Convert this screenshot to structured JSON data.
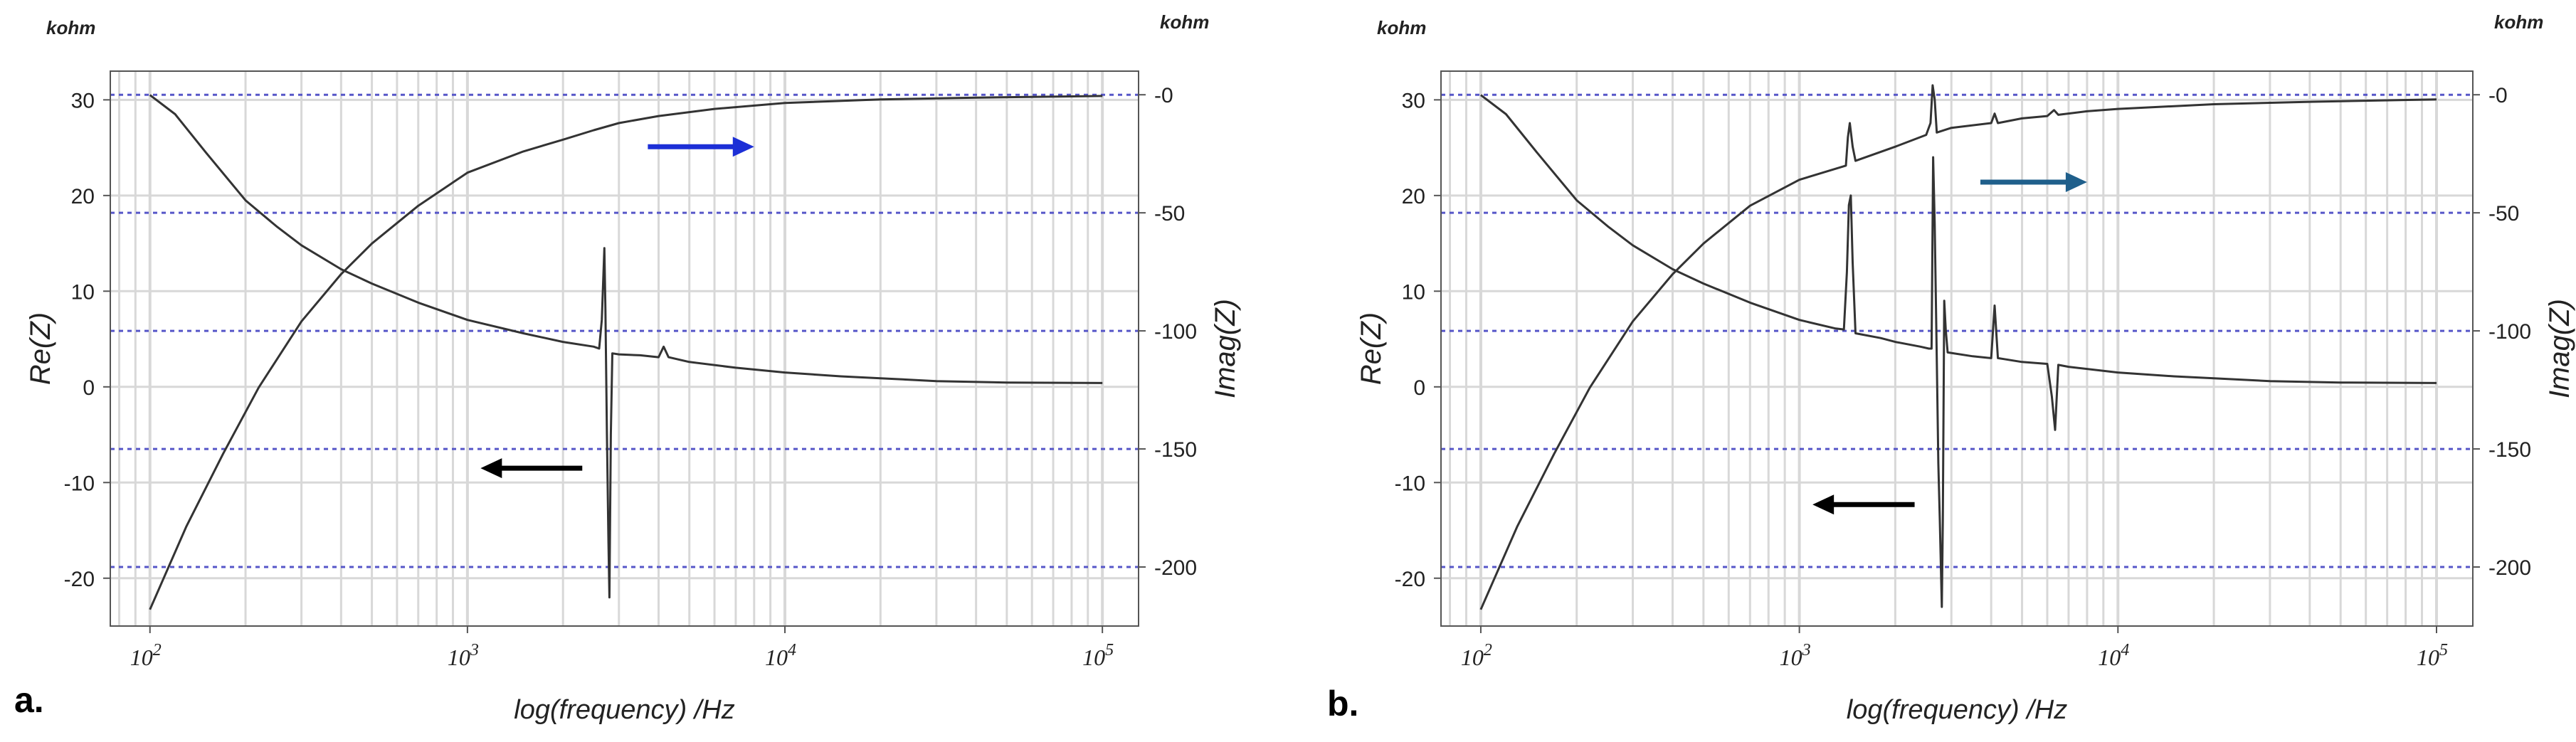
{
  "chart_data": [
    {
      "type": "line",
      "panel_label": "a.",
      "xlabel": "log(frequency) /Hz",
      "ylabel_left": "Re(Z)",
      "ylabel_right": "Imag(Z)",
      "unit_left": "kohm",
      "unit_right": "kohm",
      "x_scale": "log",
      "x_ticks": [
        {
          "value": 100,
          "base": "10",
          "exp": "2"
        },
        {
          "value": 1000,
          "base": "10",
          "exp": "3"
        },
        {
          "value": 10000,
          "base": "10",
          "exp": "4"
        },
        {
          "value": 100000,
          "base": "10",
          "exp": "5"
        }
      ],
      "xlim": [
        75,
        130000
      ],
      "ylim_left": [
        -25,
        33
      ],
      "y_ticks_left": [
        "30",
        "20",
        "10",
        "0",
        "-10",
        "-20"
      ],
      "y_tick_values_left": [
        30,
        20,
        10,
        0,
        -10,
        -20
      ],
      "ylim_right": [
        -225,
        10
      ],
      "y_ticks_right": [
        "-0",
        "-50",
        "-100",
        "-150",
        "-200"
      ],
      "y_tick_values_right": [
        0,
        -50,
        -100,
        -150,
        -200
      ],
      "grid": true,
      "colors": {
        "curve": "#333333",
        "grid_vertical": "#d8d8d8",
        "grid_horizontal": "#5656c8",
        "arrow_right": "#1c2fd6",
        "arrow_left": "#000000"
      },
      "series": [
        {
          "axis": "left",
          "points": [
            [
              100,
              30.5
            ],
            [
              120,
              28.5
            ],
            [
              150,
              24.5
            ],
            [
              200,
              19.5
            ],
            [
              250,
              16.8
            ],
            [
              300,
              14.8
            ],
            [
              400,
              12.3
            ],
            [
              500,
              10.8
            ],
            [
              700,
              8.8
            ],
            [
              1000,
              7.0
            ],
            [
              1500,
              5.6
            ],
            [
              2000,
              4.7
            ],
            [
              2500,
              4.2
            ],
            [
              2600,
              4.0
            ],
            [
              2650,
              7.0
            ],
            [
              2700,
              14.5
            ],
            [
              2720,
              8.0
            ],
            [
              2750,
              -5.0
            ],
            [
              2780,
              -16.0
            ],
            [
              2800,
              -22.0
            ],
            [
              2830,
              -5.0
            ],
            [
              2860,
              3.5
            ],
            [
              3000,
              3.4
            ],
            [
              3500,
              3.3
            ],
            [
              4000,
              3.1
            ],
            [
              4150,
              4.2
            ],
            [
              4300,
              3.1
            ],
            [
              5000,
              2.6
            ],
            [
              7000,
              2.0
            ],
            [
              10000,
              1.5
            ],
            [
              15000,
              1.1
            ],
            [
              20000,
              0.9
            ],
            [
              30000,
              0.6
            ],
            [
              50000,
              0.45
            ],
            [
              100000,
              0.4
            ]
          ]
        },
        {
          "axis": "right",
          "points": [
            [
              100,
              -218
            ],
            [
              130,
              -183
            ],
            [
              170,
              -152
            ],
            [
              220,
              -124
            ],
            [
              300,
              -96
            ],
            [
              400,
              -76
            ],
            [
              500,
              -63
            ],
            [
              700,
              -47
            ],
            [
              1000,
              -33
            ],
            [
              1500,
              -24
            ],
            [
              2000,
              -19
            ],
            [
              2500,
              -15
            ],
            [
              3000,
              -12
            ],
            [
              4000,
              -9
            ],
            [
              6000,
              -6
            ],
            [
              10000,
              -3.5
            ],
            [
              20000,
              -2
            ],
            [
              40000,
              -1.2
            ],
            [
              100000,
              -0.5
            ]
          ]
        }
      ],
      "annotations": [
        {
          "kind": "arrow",
          "direction": "right",
          "axis": "right",
          "color": "#1c2fd6",
          "from": [
            3700,
            -22
          ],
          "to": [
            8000,
            -22
          ]
        },
        {
          "kind": "arrow",
          "direction": "left",
          "axis": "left",
          "color": "#000000",
          "from": [
            2300,
            -8.5
          ],
          "to": [
            1100,
            -8.5
          ]
        }
      ]
    },
    {
      "type": "line",
      "panel_label": "b.",
      "xlabel": "log(frequency) /Hz",
      "ylabel_left": "Re(Z)",
      "ylabel_right": "Imag(Z)",
      "unit_left": "kohm",
      "unit_right": "kohm",
      "x_scale": "log",
      "x_ticks": [
        {
          "value": 100,
          "base": "10",
          "exp": "2"
        },
        {
          "value": 1000,
          "base": "10",
          "exp": "3"
        },
        {
          "value": 10000,
          "base": "10",
          "exp": "4"
        },
        {
          "value": 100000,
          "base": "10",
          "exp": "5"
        }
      ],
      "xlim": [
        75,
        130000
      ],
      "ylim_left": [
        -25,
        33
      ],
      "y_ticks_left": [
        "30",
        "20",
        "10",
        "0",
        "-10",
        "-20"
      ],
      "y_tick_values_left": [
        30,
        20,
        10,
        0,
        -10,
        -20
      ],
      "ylim_right": [
        -225,
        10
      ],
      "y_ticks_right": [
        "-0",
        "-50",
        "-100",
        "-150",
        "-200"
      ],
      "y_tick_values_right": [
        0,
        -50,
        -100,
        -150,
        -200
      ],
      "grid": true,
      "colors": {
        "curve": "#333333",
        "grid_vertical": "#d8d8d8",
        "grid_horizontal": "#5656c8",
        "arrow_right": "#1f5f8b",
        "arrow_left": "#000000"
      },
      "series": [
        {
          "axis": "left",
          "points": [
            [
              100,
              30.5
            ],
            [
              120,
              28.5
            ],
            [
              150,
              24.5
            ],
            [
              200,
              19.5
            ],
            [
              250,
              16.8
            ],
            [
              300,
              14.8
            ],
            [
              400,
              12.3
            ],
            [
              500,
              10.8
            ],
            [
              700,
              8.8
            ],
            [
              1000,
              7.0
            ],
            [
              1300,
              6.1
            ],
            [
              1380,
              6.0
            ],
            [
              1410,
              12.0
            ],
            [
              1430,
              19.0
            ],
            [
              1450,
              20.0
            ],
            [
              1470,
              13.0
            ],
            [
              1500,
              5.6
            ],
            [
              1800,
              5.1
            ],
            [
              2000,
              4.7
            ],
            [
              2400,
              4.2
            ],
            [
              2550,
              4.0
            ],
            [
              2600,
              4.0
            ],
            [
              2630,
              24.0
            ],
            [
              2660,
              17.0
            ],
            [
              2700,
              3.0
            ],
            [
              2730,
              -8.0
            ],
            [
              2760,
              -14.0
            ],
            [
              2800,
              -23.0
            ],
            [
              2820,
              -14.0
            ],
            [
              2850,
              9.0
            ],
            [
              2880,
              6.0
            ],
            [
              2920,
              3.6
            ],
            [
              3500,
              3.2
            ],
            [
              4000,
              3.0
            ],
            [
              4100,
              8.5
            ],
            [
              4200,
              3.0
            ],
            [
              4400,
              2.9
            ],
            [
              5000,
              2.6
            ],
            [
              6000,
              2.4
            ],
            [
              6200,
              -1.0
            ],
            [
              6350,
              -4.5
            ],
            [
              6500,
              2.3
            ],
            [
              7000,
              2.1
            ],
            [
              10000,
              1.5
            ],
            [
              15000,
              1.1
            ],
            [
              20000,
              0.9
            ],
            [
              30000,
              0.6
            ],
            [
              50000,
              0.45
            ],
            [
              100000,
              0.4
            ]
          ]
        },
        {
          "axis": "right",
          "points": [
            [
              100,
              -218
            ],
            [
              130,
              -183
            ],
            [
              170,
              -152
            ],
            [
              220,
              -124
            ],
            [
              300,
              -96
            ],
            [
              400,
              -76
            ],
            [
              500,
              -63
            ],
            [
              700,
              -47
            ],
            [
              1000,
              -36
            ],
            [
              1400,
              -30
            ],
            [
              1420,
              -18
            ],
            [
              1440,
              -12
            ],
            [
              1470,
              -22
            ],
            [
              1500,
              -28
            ],
            [
              2000,
              -22
            ],
            [
              2500,
              -17
            ],
            [
              2580,
              -12
            ],
            [
              2620,
              4
            ],
            [
              2660,
              -2
            ],
            [
              2700,
              -16
            ],
            [
              3000,
              -14
            ],
            [
              4000,
              -12
            ],
            [
              4100,
              -8
            ],
            [
              4200,
              -12
            ],
            [
              5000,
              -10
            ],
            [
              6000,
              -9
            ],
            [
              6300,
              -6.5
            ],
            [
              6500,
              -8.5
            ],
            [
              8000,
              -7
            ],
            [
              10000,
              -6
            ],
            [
              20000,
              -4
            ],
            [
              40000,
              -3
            ],
            [
              100000,
              -2
            ]
          ]
        }
      ],
      "annotations": [
        {
          "kind": "arrow",
          "direction": "right",
          "axis": "right",
          "color": "#1f5f8b",
          "from": [
            3700,
            -37
          ],
          "to": [
            8000,
            -37
          ]
        },
        {
          "kind": "arrow",
          "direction": "left",
          "axis": "left",
          "color": "#000000",
          "from": [
            2300,
            -12.3
          ],
          "to": [
            1100,
            -12.3
          ]
        }
      ]
    }
  ]
}
